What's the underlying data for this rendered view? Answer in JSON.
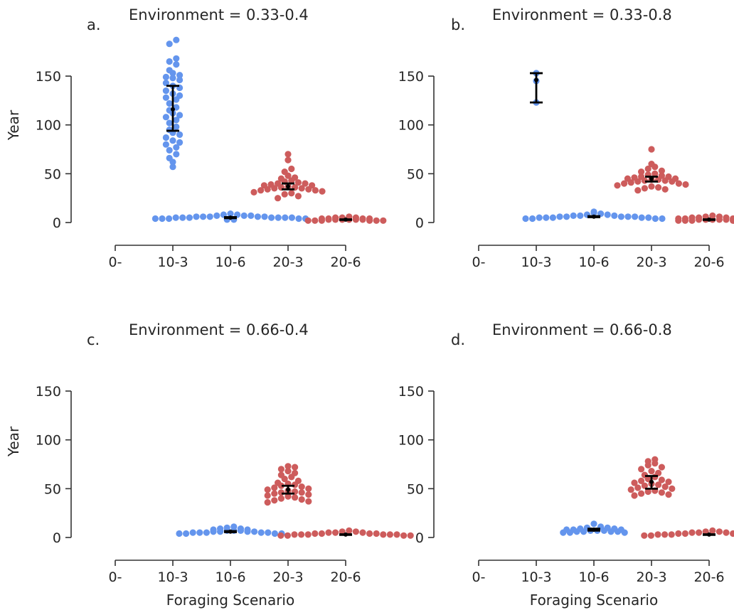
{
  "chart_data": [
    {
      "type": "scatter",
      "letter": "a.",
      "title": "Environment = 0.33-0.4",
      "xlabel": "",
      "ylabel": "Year",
      "categories": [
        "0-",
        "10-3",
        "10-6",
        "20-3",
        "20-6"
      ],
      "yticks": [
        0,
        50,
        100,
        150
      ],
      "ylim": [
        0,
        190
      ],
      "colors": {
        "10-3": "#6495ED",
        "10-6": "#6495ED",
        "20-3": "#CD5C5C",
        "20-6": "#CD5C5C"
      },
      "groups": [
        {
          "category": "10-3",
          "points": [
            187,
            183,
            168,
            165,
            162,
            156,
            153,
            151,
            149,
            148,
            146,
            143,
            140,
            138,
            135,
            132,
            130,
            128,
            126,
            122,
            118,
            115,
            112,
            110,
            108,
            105,
            102,
            98,
            95,
            92,
            90,
            87,
            84,
            82,
            80,
            77,
            74,
            70,
            66,
            62,
            57
          ],
          "mean": 116,
          "ci": [
            94,
            140
          ]
        },
        {
          "category": "10-6",
          "points": [
            9,
            8,
            8,
            7,
            7,
            7,
            6,
            6,
            6,
            6,
            6,
            5,
            5,
            5,
            5,
            5,
            5,
            5,
            4,
            4,
            4,
            4,
            4,
            3,
            3
          ],
          "mean": 5,
          "ci": [
            4.5,
            5.5
          ]
        },
        {
          "category": "20-3",
          "points": [
            70,
            64,
            55,
            52,
            48,
            46,
            45,
            43,
            42,
            41,
            40,
            40,
            39,
            38,
            38,
            37,
            36,
            36,
            35,
            35,
            34,
            34,
            33,
            33,
            32,
            31,
            30,
            29,
            27,
            25
          ],
          "mean": 37,
          "ci": [
            34,
            40
          ]
        },
        {
          "category": "20-6",
          "points": [
            6,
            5,
            5,
            5,
            4,
            4,
            4,
            4,
            3,
            3,
            3,
            3,
            3,
            3,
            2,
            2,
            2,
            2,
            2,
            2
          ],
          "mean": 3,
          "ci": [
            2.7,
            3.3
          ]
        }
      ]
    },
    {
      "type": "scatter",
      "letter": "b.",
      "title": "Environment = 0.33-0.8",
      "xlabel": "",
      "ylabel": "",
      "categories": [
        "0-",
        "10-3",
        "10-6",
        "20-3",
        "20-6"
      ],
      "yticks": [
        0,
        50,
        100,
        150
      ],
      "ylim": [
        0,
        190
      ],
      "colors": {
        "10-3": "#6495ED",
        "10-6": "#6495ED",
        "20-3": "#CD5C5C",
        "20-6": "#CD5C5C"
      },
      "groups": [
        {
          "category": "10-3",
          "points": [
            153,
            145,
            123
          ],
          "mean": 146,
          "ci": [
            123,
            153
          ]
        },
        {
          "category": "10-6",
          "points": [
            11,
            10,
            9,
            8,
            8,
            7,
            7,
            7,
            6,
            6,
            6,
            6,
            6,
            5,
            5,
            5,
            5,
            5,
            4,
            4,
            4,
            4
          ],
          "mean": 6,
          "ci": [
            5.5,
            6.5
          ]
        },
        {
          "category": "20-3",
          "points": [
            75,
            60,
            57,
            55,
            53,
            52,
            50,
            49,
            48,
            47,
            47,
            46,
            45,
            45,
            44,
            44,
            43,
            43,
            42,
            42,
            41,
            40,
            40,
            39,
            38,
            37,
            36,
            35,
            34,
            33
          ],
          "mean": 45,
          "ci": [
            42,
            47
          ]
        },
        {
          "category": "20-6",
          "points": [
            7,
            6,
            6,
            5,
            5,
            5,
            4,
            4,
            4,
            4,
            3,
            3,
            3,
            3,
            3,
            2,
            2,
            2,
            2,
            2
          ],
          "mean": 3,
          "ci": [
            2.7,
            3.3
          ]
        }
      ]
    },
    {
      "type": "scatter",
      "letter": "c.",
      "title": "Environment = 0.66-0.4",
      "xlabel": "Foraging Scenario",
      "ylabel": "Year",
      "categories": [
        "0-",
        "10-3",
        "10-6",
        "20-3",
        "20-6"
      ],
      "yticks": [
        0,
        50,
        100,
        150
      ],
      "ylim": [
        0,
        190
      ],
      "colors": {
        "10-3": "#6495ED",
        "10-6": "#6495ED",
        "20-3": "#CD5C5C",
        "20-6": "#CD5C5C"
      },
      "groups": [
        {
          "category": "10-6",
          "points": [
            11,
            10,
            9,
            9,
            8,
            8,
            7,
            7,
            7,
            6,
            6,
            6,
            6,
            5,
            5,
            5,
            5,
            5,
            4,
            4,
            4,
            4
          ],
          "mean": 6,
          "ci": [
            5.5,
            6.5
          ]
        },
        {
          "category": "20-3",
          "points": [
            73,
            72,
            70,
            68,
            66,
            64,
            62,
            60,
            58,
            56,
            55,
            54,
            53,
            52,
            51,
            50,
            49,
            48,
            47,
            46,
            46,
            45,
            44,
            43,
            42,
            41,
            40,
            39,
            38,
            37,
            36
          ],
          "mean": 49,
          "ci": [
            45,
            53
          ]
        },
        {
          "category": "20-6",
          "points": [
            7,
            6,
            6,
            5,
            5,
            5,
            4,
            4,
            4,
            4,
            3,
            3,
            3,
            3,
            3,
            3,
            2,
            2,
            2,
            2
          ],
          "mean": 3,
          "ci": [
            2.7,
            3.3
          ]
        }
      ]
    },
    {
      "type": "scatter",
      "letter": "d.",
      "title": "Environment = 0.66-0.8",
      "xlabel": "Foraging Scenario",
      "ylabel": "",
      "categories": [
        "0-",
        "10-3",
        "10-6",
        "20-3",
        "20-6"
      ],
      "yticks": [
        0,
        50,
        100,
        150
      ],
      "ylim": [
        0,
        190
      ],
      "colors": {
        "10-3": "#6495ED",
        "10-6": "#6495ED",
        "20-3": "#CD5C5C",
        "20-6": "#CD5C5C"
      },
      "groups": [
        {
          "category": "10-6",
          "points": [
            14,
            11,
            10,
            10,
            9,
            9,
            8,
            8,
            8,
            7,
            7,
            7,
            6,
            6,
            6,
            6,
            5,
            5,
            5
          ],
          "mean": 8,
          "ci": [
            7,
            9
          ]
        },
        {
          "category": "20-3",
          "points": [
            80,
            78,
            76,
            74,
            72,
            70,
            68,
            66,
            64,
            62,
            60,
            59,
            58,
            57,
            56,
            55,
            54,
            53,
            52,
            51,
            50,
            49,
            48,
            47,
            46,
            45,
            44,
            43
          ],
          "mean": 57,
          "ci": [
            50,
            63
          ]
        },
        {
          "category": "20-6",
          "points": [
            7,
            6,
            6,
            5,
            5,
            5,
            4,
            4,
            4,
            4,
            3,
            3,
            3,
            3,
            3,
            3,
            2,
            2,
            2,
            2
          ],
          "mean": 3,
          "ci": [
            2.7,
            3.3
          ]
        }
      ]
    }
  ]
}
